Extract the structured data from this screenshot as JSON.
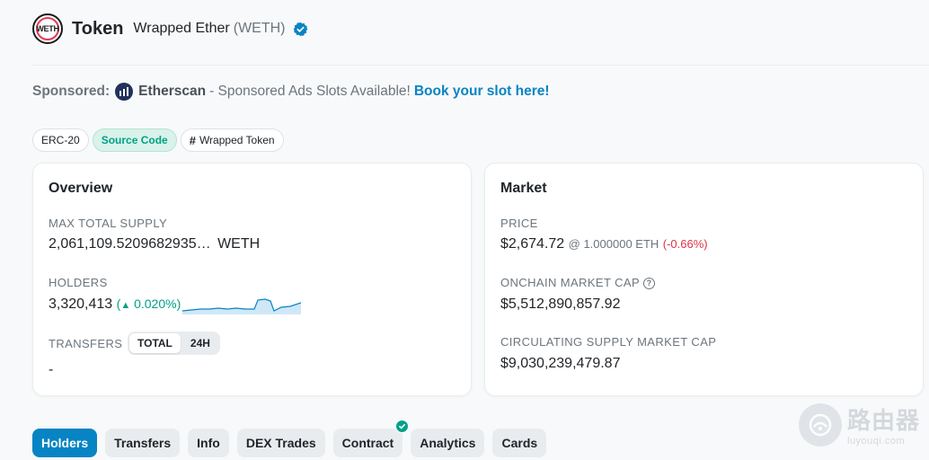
{
  "header": {
    "logo_text": "WETH",
    "page_type": "Token",
    "token_name": "Wrapped Ether",
    "token_symbol": "(WETH)"
  },
  "sponsored": {
    "label": "Sponsored:",
    "brand": "Etherscan",
    "text": "- Sponsored Ads Slots Available!",
    "link": "Book your slot here!"
  },
  "tags": [
    {
      "label": "ERC-20"
    },
    {
      "label": "Source Code"
    },
    {
      "label": "Wrapped Token"
    }
  ],
  "overview": {
    "title": "Overview",
    "max_supply_label": "MAX TOTAL SUPPLY",
    "max_supply_value": "2,061,109.5209682935…",
    "max_supply_unit": "WETH",
    "holders_label": "HOLDERS",
    "holders_value": "3,320,413",
    "holders_change": "0.020%",
    "transfers_label": "TRANSFERS",
    "transfers_tabs": [
      "TOTAL",
      "24H"
    ],
    "transfers_value": "-"
  },
  "market": {
    "title": "Market",
    "price_label": "PRICE",
    "price_value": "$2,674.72",
    "price_eth": "@ 1.000000 ETH",
    "price_change": "(-0.66%)",
    "mcap_label": "ONCHAIN MARKET CAP",
    "mcap_value": "$5,512,890,857.92",
    "circ_label": "CIRCULATING SUPPLY MARKET CAP",
    "circ_value": "$9,030,239,479.87"
  },
  "tabs": [
    "Holders",
    "Transfers",
    "Info",
    "DEX Trades",
    "Contract",
    "Analytics",
    "Cards"
  ],
  "watermark": {
    "cn": "路由器",
    "en": "luyouqi.com"
  },
  "colors": {
    "accent": "#0784c3",
    "success": "#00a186",
    "danger": "#dc3545",
    "weth_ring": "#e33a56"
  }
}
